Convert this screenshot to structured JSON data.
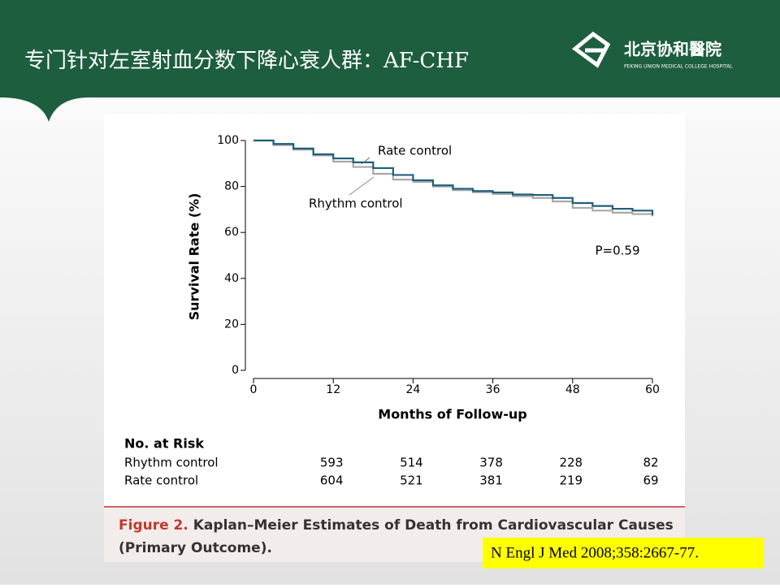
{
  "slide": {
    "title": "专门针对左室射血分数下降心衰人群：AF-CHF",
    "logo_text": "北京协和醫院",
    "logo_subtitle": "PEKING UNION MEDICAL COLLEGE HOSPITAL",
    "citation": "N Engl J Med 2008;358:2667-77."
  },
  "chart_data": {
    "type": "line",
    "step": true,
    "xlabel": "Months of Follow-up",
    "ylabel": "Survival Rate (%)",
    "xlim": [
      0,
      60
    ],
    "ylim": [
      0,
      100
    ],
    "xticks": [
      0,
      12,
      24,
      36,
      48,
      60
    ],
    "yticks": [
      0,
      20,
      40,
      60,
      80,
      100
    ],
    "annotation": "P=0.59",
    "x": [
      0,
      3,
      6,
      9,
      12,
      15,
      18,
      21,
      24,
      27,
      30,
      33,
      36,
      39,
      42,
      45,
      48,
      51,
      54,
      57,
      60
    ],
    "series": [
      {
        "name": "Rate control",
        "color": "#1f5f7a",
        "values": [
          100,
          98.5,
          96.5,
          94,
          92.2,
          90.5,
          88,
          85,
          82.7,
          80.5,
          79,
          78,
          77.4,
          76.5,
          76.3,
          75,
          72.8,
          71.5,
          70.3,
          69.5,
          67.5
        ],
        "at_risk": [
          604,
          521,
          381,
          219,
          69
        ]
      },
      {
        "name": "Rhythm control",
        "color": "#a8a8a8",
        "values": [
          100,
          98,
          96,
          93.5,
          90.8,
          88.5,
          85.5,
          83,
          82,
          80,
          78.4,
          77.5,
          76.7,
          75.8,
          75,
          73.5,
          70.7,
          69.5,
          68.6,
          68,
          67
        ],
        "at_risk": [
          593,
          514,
          378,
          228,
          82
        ]
      }
    ],
    "risk_table_title": "No. at Risk",
    "caption_label": "Figure 2.",
    "caption": "Kaplan–Meier Estimates of Death from Cardiovascular Causes (Primary Outcome)."
  }
}
